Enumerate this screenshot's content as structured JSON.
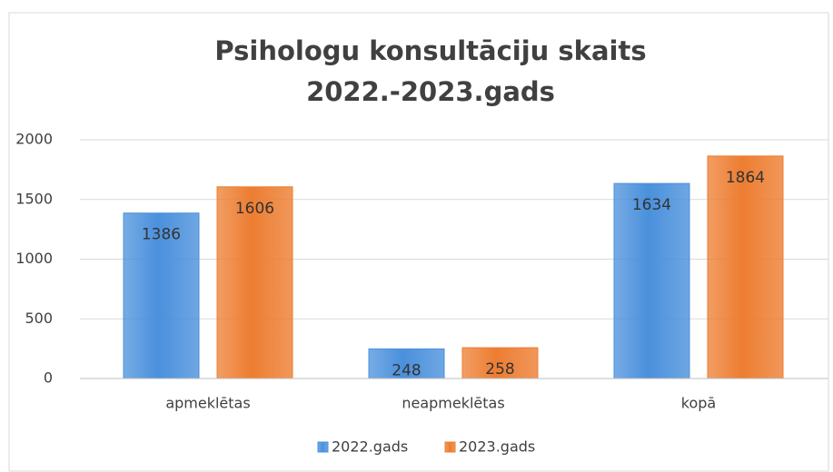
{
  "chart_data": {
    "type": "bar",
    "title": [
      "Psihologu konsultāciju skaits",
      "2022.-2023.gads"
    ],
    "categories": [
      "apmeklētas",
      "neapmeklētas",
      "kopā"
    ],
    "series": [
      {
        "name": "2022.gads",
        "color": "#4a90dc",
        "values": [
          1386,
          248,
          1634
        ]
      },
      {
        "name": "2023.gads",
        "color": "#ed7d31",
        "values": [
          1606,
          258,
          1864
        ]
      }
    ],
    "ylim": [
      0,
      2000
    ],
    "yticks": [
      0,
      500,
      1000,
      1500,
      2000
    ],
    "grid": true,
    "legend": "bottom"
  }
}
